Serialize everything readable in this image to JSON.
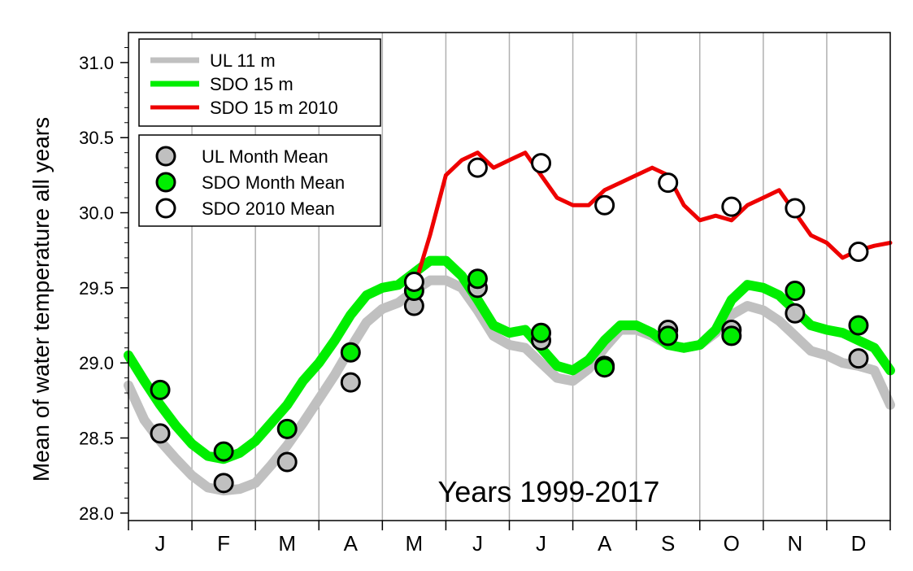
{
  "chart_data": {
    "type": "line",
    "title": "",
    "xlabel": "",
    "ylabel": "Mean of water temperature all years",
    "annotation": "Years 1999-2017",
    "ylim": [
      27.95,
      31.2
    ],
    "xlim": [
      0,
      12
    ],
    "grid": true,
    "legend_position": "top-left",
    "months": [
      "J",
      "F",
      "M",
      "A",
      "M",
      "J",
      "J",
      "A",
      "S",
      "O",
      "N",
      "D"
    ],
    "yticks": [
      28.0,
      28.5,
      29.0,
      29.5,
      30.0,
      30.5,
      31.0
    ],
    "ytick_labels": [
      "28.0",
      "28.5",
      "29.0",
      "29.5",
      "30.0",
      "30.5",
      "31.0"
    ],
    "series": [
      {
        "name": "UL 11 m",
        "color": "#c0c0c0",
        "x": [
          0,
          0.25,
          0.5,
          0.75,
          1,
          1.25,
          1.5,
          1.75,
          2,
          2.25,
          2.5,
          2.75,
          3,
          3.25,
          3.5,
          3.75,
          4,
          4.25,
          4.5,
          4.75,
          5,
          5.25,
          5.5,
          5.75,
          6,
          6.25,
          6.5,
          6.75,
          7,
          7.25,
          7.5,
          7.75,
          8,
          8.25,
          8.5,
          8.75,
          9,
          9.25,
          9.5,
          9.75,
          10,
          10.25,
          10.5,
          10.75,
          11,
          11.25,
          11.5,
          11.75,
          12
        ],
        "y": [
          28.85,
          28.62,
          28.48,
          28.36,
          28.25,
          28.17,
          28.15,
          28.16,
          28.2,
          28.32,
          28.45,
          28.6,
          28.76,
          28.92,
          29.1,
          29.27,
          29.36,
          29.4,
          29.48,
          29.55,
          29.55,
          29.5,
          29.35,
          29.18,
          29.12,
          29.1,
          29.0,
          28.9,
          28.88,
          28.96,
          29.1,
          29.22,
          29.22,
          29.18,
          29.12,
          29.1,
          29.12,
          29.2,
          29.32,
          29.38,
          29.35,
          29.28,
          29.18,
          29.08,
          29.05,
          29.0,
          28.98,
          28.95,
          28.72
        ]
      },
      {
        "name": "SDO 15 m",
        "color": "#00ee00",
        "x": [
          0,
          0.25,
          0.5,
          0.75,
          1,
          1.25,
          1.5,
          1.75,
          2,
          2.25,
          2.5,
          2.75,
          3,
          3.25,
          3.5,
          3.75,
          4,
          4.25,
          4.5,
          4.75,
          5,
          5.25,
          5.5,
          5.75,
          6,
          6.25,
          6.5,
          6.75,
          7,
          7.25,
          7.5,
          7.75,
          8,
          8.25,
          8.5,
          8.75,
          9,
          9.25,
          9.5,
          9.75,
          10,
          10.25,
          10.5,
          10.75,
          11,
          11.25,
          11.5,
          11.75,
          12
        ],
        "y": [
          29.05,
          28.88,
          28.72,
          28.58,
          28.46,
          28.38,
          28.36,
          28.4,
          28.48,
          28.6,
          28.72,
          28.88,
          29.0,
          29.15,
          29.32,
          29.45,
          29.5,
          29.52,
          29.6,
          29.68,
          29.68,
          29.58,
          29.42,
          29.25,
          29.2,
          29.22,
          29.1,
          28.98,
          28.95,
          29.02,
          29.15,
          29.25,
          29.25,
          29.2,
          29.12,
          29.1,
          29.12,
          29.22,
          29.42,
          29.52,
          29.5,
          29.45,
          29.35,
          29.25,
          29.22,
          29.2,
          29.15,
          29.1,
          28.95
        ]
      },
      {
        "name": "SDO 15 m 2010",
        "color": "#ee0000",
        "x": [
          4.5,
          4.75,
          5,
          5.25,
          5.5,
          5.75,
          6,
          6.25,
          6.5,
          6.75,
          7,
          7.25,
          7.5,
          7.75,
          8,
          8.25,
          8.5,
          8.75,
          9,
          9.25,
          9.5,
          9.75,
          10,
          10.25,
          10.5,
          10.75,
          11,
          11.25,
          11.5,
          11.75,
          12
        ],
        "y": [
          29.5,
          29.85,
          30.25,
          30.35,
          30.4,
          30.3,
          30.35,
          30.4,
          30.25,
          30.1,
          30.05,
          30.05,
          30.15,
          30.2,
          30.25,
          30.3,
          30.25,
          30.05,
          29.95,
          29.98,
          29.95,
          30.05,
          30.1,
          30.15,
          30.0,
          29.85,
          29.8,
          29.7,
          29.75,
          29.78,
          29.8
        ]
      }
    ],
    "markers": [
      {
        "name": "UL Month Mean",
        "color": "#c0c0c0",
        "x": [
          0.5,
          1.5,
          2.5,
          3.5,
          4.5,
          5.5,
          6.5,
          7.5,
          8.5,
          9.5,
          10.5,
          11.5
        ],
        "y": [
          28.53,
          28.2,
          28.34,
          28.87,
          29.38,
          29.5,
          29.15,
          28.98,
          29.22,
          29.22,
          29.33,
          29.03
        ]
      },
      {
        "name": "SDO Month Mean",
        "color": "#00ee00",
        "x": [
          0.5,
          1.5,
          2.5,
          3.5,
          4.5,
          5.5,
          6.5,
          7.5,
          8.5,
          9.5,
          10.5,
          11.5
        ],
        "y": [
          28.82,
          28.41,
          28.56,
          29.07,
          29.48,
          29.56,
          29.2,
          28.97,
          29.18,
          29.18,
          29.48,
          29.25
        ]
      },
      {
        "name": "SDO 2010 Mean",
        "color": "#ffffff",
        "x": [
          4.5,
          5.5,
          6.5,
          7.5,
          8.5,
          9.5,
          10.5,
          11.5
        ],
        "y": [
          29.54,
          30.3,
          30.33,
          30.05,
          30.2,
          30.04,
          30.03,
          29.74
        ]
      }
    ]
  }
}
